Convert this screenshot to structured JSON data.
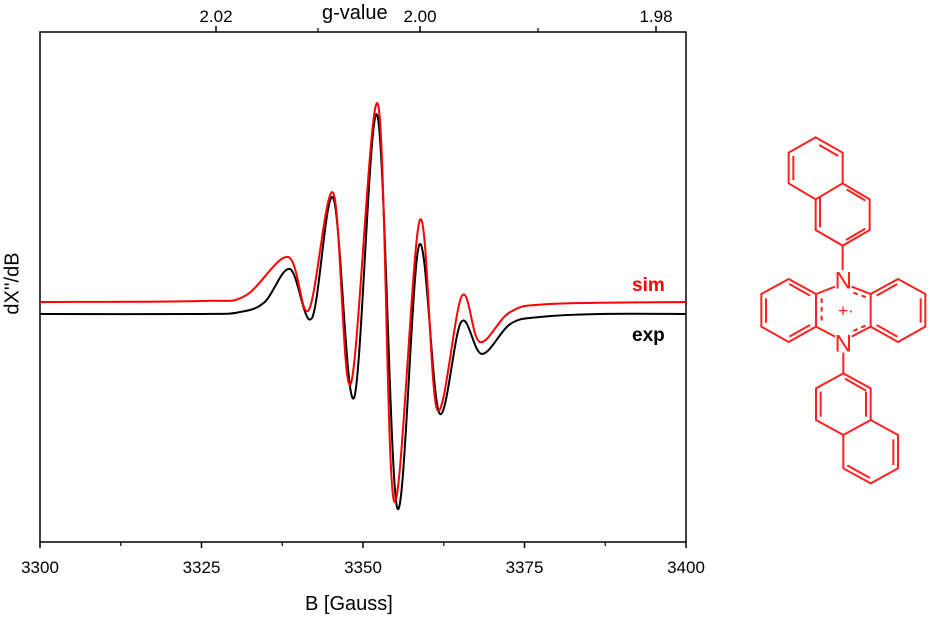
{
  "chart_data": {
    "type": "line",
    "xlabel": "B [Gauss]",
    "ylabel": "dX''/dB",
    "top_axis_label": "g-value",
    "xlim": [
      3300,
      3400
    ],
    "x_ticks": [
      3300,
      3325,
      3350,
      3375,
      3400
    ],
    "x_tick_labels": [
      "3300",
      "3325",
      "3350",
      "3375",
      "3400"
    ],
    "x_minor_step": 12.5,
    "top_ticks": [
      2.02,
      2.0,
      1.98
    ],
    "top_tick_labels": [
      "2.02",
      "2.00",
      "1.98"
    ],
    "y_ticks": [],
    "grid": false,
    "legend_placement": "right, beside curves",
    "series": [
      {
        "name": "sim",
        "color": "#ff0000",
        "x": [
          3300,
          3324.8,
          3331.7,
          3338.4,
          3341.6,
          3345.4,
          3348.1,
          3352.3,
          3354.8,
          3358.8,
          3361.5,
          3365.3,
          3368.1,
          3372.8,
          3379.0,
          3400
        ],
        "y": [
          12,
          13,
          18,
          57,
          4,
          121,
          -70,
          210,
          -187,
          94,
          -96,
          18,
          -28,
          2,
          10,
          12
        ]
      },
      {
        "name": "exp",
        "color": "#000000",
        "x": [
          3300,
          3324.8,
          3331.0,
          3334.8,
          3338.7,
          3342.1,
          3345.4,
          3348.6,
          3352.2,
          3355.3,
          3358.7,
          3361.8,
          3365.2,
          3368.4,
          3372.8,
          3377.4,
          3386.7,
          3400
        ],
        "y": [
          0,
          0,
          2,
          12,
          45,
          -4,
          116,
          -84,
          199,
          -194,
          69,
          -99,
          -8,
          -40,
          -10,
          -3,
          0,
          0
        ]
      }
    ]
  },
  "structure": {
    "color": "#ff2020",
    "atom_top": "N",
    "atom_bottom": "N",
    "charge": "+·"
  }
}
